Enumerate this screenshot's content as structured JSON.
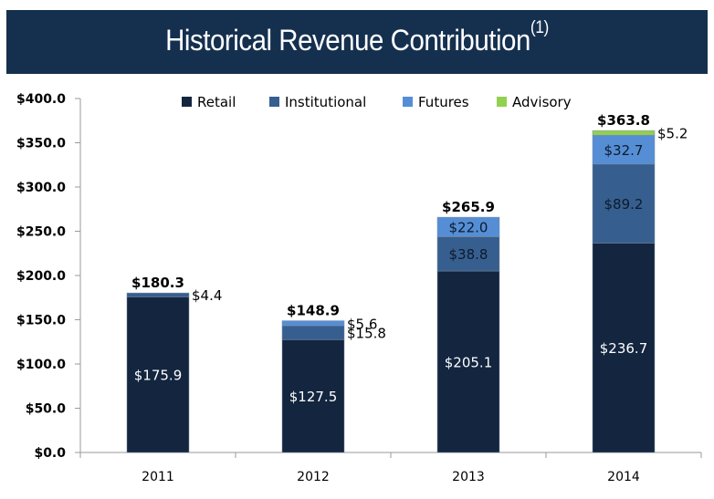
{
  "header": {
    "title": "Historical Revenue Contribution",
    "footnote_marker": "(1)"
  },
  "colors": {
    "banner": "#15304f",
    "Retail": "#13253f",
    "Institutional": "#365f8f",
    "Futures": "#558ed5",
    "Advisory": "#92d050"
  },
  "chart_data": {
    "type": "bar",
    "stacked": true,
    "title": "Historical Revenue Contribution(1)",
    "xlabel": "",
    "ylabel": "",
    "categories": [
      "2011",
      "2012",
      "2013",
      "2014"
    ],
    "series": [
      {
        "name": "Retail",
        "values": [
          175.9,
          127.5,
          205.1,
          236.7
        ],
        "labels": [
          "$175.9",
          "$127.5",
          "$205.1",
          "$236.7"
        ]
      },
      {
        "name": "Institutional",
        "values": [
          4.4,
          15.8,
          38.8,
          89.2
        ],
        "labels": [
          "$4.4",
          "$15.8",
          "$38.8",
          "$89.2"
        ]
      },
      {
        "name": "Futures",
        "values": [
          0,
          5.6,
          22.0,
          32.7
        ],
        "labels": [
          "",
          "$5.6",
          "$22.0",
          "$32.7"
        ]
      },
      {
        "name": "Advisory",
        "values": [
          0,
          0,
          0,
          5.2
        ],
        "labels": [
          "",
          "",
          "",
          "$5.2"
        ]
      }
    ],
    "totals": [
      180.3,
      148.9,
      265.9,
      363.8
    ],
    "total_labels": [
      "$180.3",
      "$148.9",
      "$265.9",
      "$363.8"
    ],
    "ylim": [
      0,
      400
    ],
    "yticks": [
      0,
      50,
      100,
      150,
      200,
      250,
      300,
      350,
      400
    ],
    "ytick_labels": [
      "$0.0",
      "$50.0",
      "$100.0",
      "$150.0",
      "$200.0",
      "$250.0",
      "$300.0",
      "$350.0",
      "$400.0"
    ],
    "grid": false,
    "legend": {
      "position": "top-center",
      "entries": [
        "Retail",
        "Institutional",
        "Futures",
        "Advisory"
      ]
    }
  }
}
